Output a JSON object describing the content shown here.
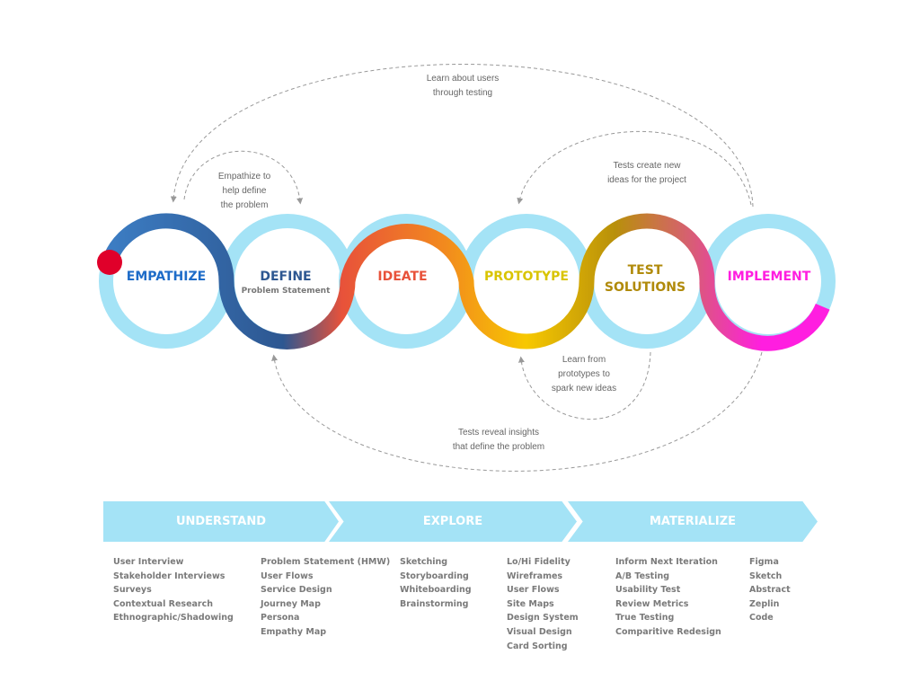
{
  "stages": [
    {
      "label": "EMPATHIZE",
      "color": "#1e6cc8"
    },
    {
      "label": "DEFINE",
      "sublabel": "Problem Statement",
      "color": "#2d5791"
    },
    {
      "label": "IDEATE",
      "color": "#e8523a"
    },
    {
      "label": "PROTOTYPE",
      "color": "#d9c400"
    },
    {
      "label": "TEST SOLUTIONS",
      "line1": "TEST",
      "line2": "SOLUTIONS",
      "color": "#b08a0a"
    },
    {
      "label": "IMPLEMENT",
      "color": "#ff1ee0"
    }
  ],
  "notes": {
    "learn_users": [
      "Learn about users",
      "through testing"
    ],
    "empathize_define": [
      "Empathize to",
      "help define",
      "the problem"
    ],
    "tests_create": [
      "Tests create new",
      "ideas for the project"
    ],
    "learn_prototypes": [
      "Learn from",
      "prototypes to",
      "spark new ideas"
    ],
    "tests_reveal": [
      "Tests reveal insights",
      "that define the problem"
    ]
  },
  "phases": [
    "UNDERSTAND",
    "EXPLORE",
    "MATERIALIZE"
  ],
  "columns": [
    [
      "User Interview",
      "Stakeholder Interviews",
      "Surveys",
      "Contextual Research",
      "Ethnographic/Shadowing"
    ],
    [
      "Problem Statement (HMW)",
      "User Flows",
      "Service Design",
      "Journey Map",
      "Persona",
      "Empathy Map"
    ],
    [
      "Sketching",
      "Storyboarding",
      "Whiteboarding",
      "Brainstorming"
    ],
    [
      "Lo/Hi Fidelity",
      "Wireframes",
      "User Flows",
      "Site Maps",
      "Design System",
      "Visual Design",
      "Card Sorting"
    ],
    [
      "Inform Next Iteration",
      "A/B Testing",
      "Usability Test",
      "Review Metrics",
      "True Testing",
      "Comparitive Redesign"
    ],
    [
      "Figma",
      "Sketch",
      "Abstract",
      "Zeplin",
      "Code"
    ]
  ],
  "colors": {
    "ring": "#a4e3f6",
    "start_dot": "#e0002a",
    "dash": "#999999"
  }
}
